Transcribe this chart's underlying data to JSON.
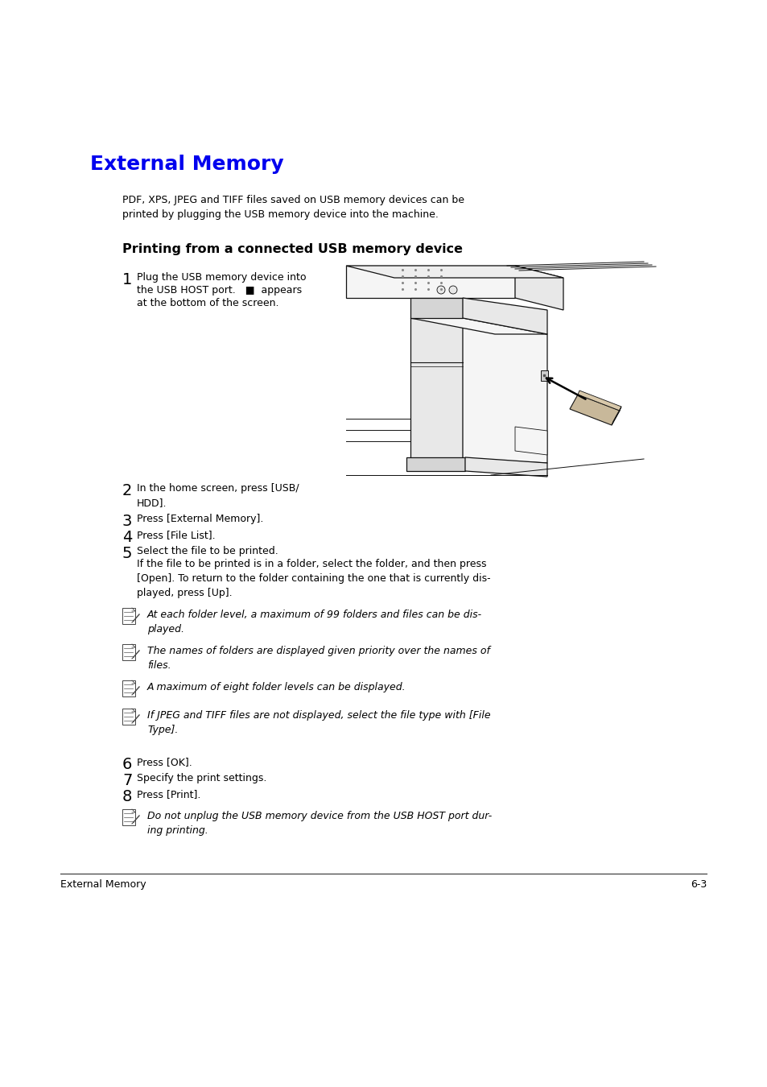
{
  "bg_color": "#ffffff",
  "title": "External Memory",
  "title_color": "#0000EE",
  "title_fontsize": 18,
  "subtitle": "Printing from a connected USB memory device",
  "subtitle_fontsize": 11.5,
  "intro_text": "PDF, XPS, JPEG and TIFF files saved on USB memory devices can be\nprinted by plugging the USB memory device into the machine.",
  "intro_fontsize": 9.0,
  "step1_text_line1": "Plug the USB memory device into",
  "step1_text_line2": "the USB HOST port.   ■  appears",
  "step1_text_line3": "at the bottom of the screen.",
  "step2_text": "In the home screen, press [USB/\nHDD].",
  "step3_text": "Press [External Memory].",
  "step4_text": "Press [File List].",
  "step5_text": "Select the file to be printed.",
  "step5_cont": "If the file to be printed is in a folder, select the folder, and then press\n[Open]. To return to the folder containing the one that is currently dis-\nplayed, press [Up].",
  "note1": "At each folder level, a maximum of 99 folders and files can be dis-\nplayed.",
  "note2": "The names of folders are displayed given priority over the names of\nfiles.",
  "note3": "A maximum of eight folder levels can be displayed.",
  "note4": "If JPEG and TIFF files are not displayed, select the file type with [File\nType].",
  "step6_text": "Press [OK].",
  "step7_text": "Specify the print settings.",
  "step8_text": "Press [Print].",
  "final_note": "Do not unplug the USB memory device from the USB HOST port dur-\ning printing.",
  "footer_left": "External Memory",
  "footer_right": "6-3"
}
